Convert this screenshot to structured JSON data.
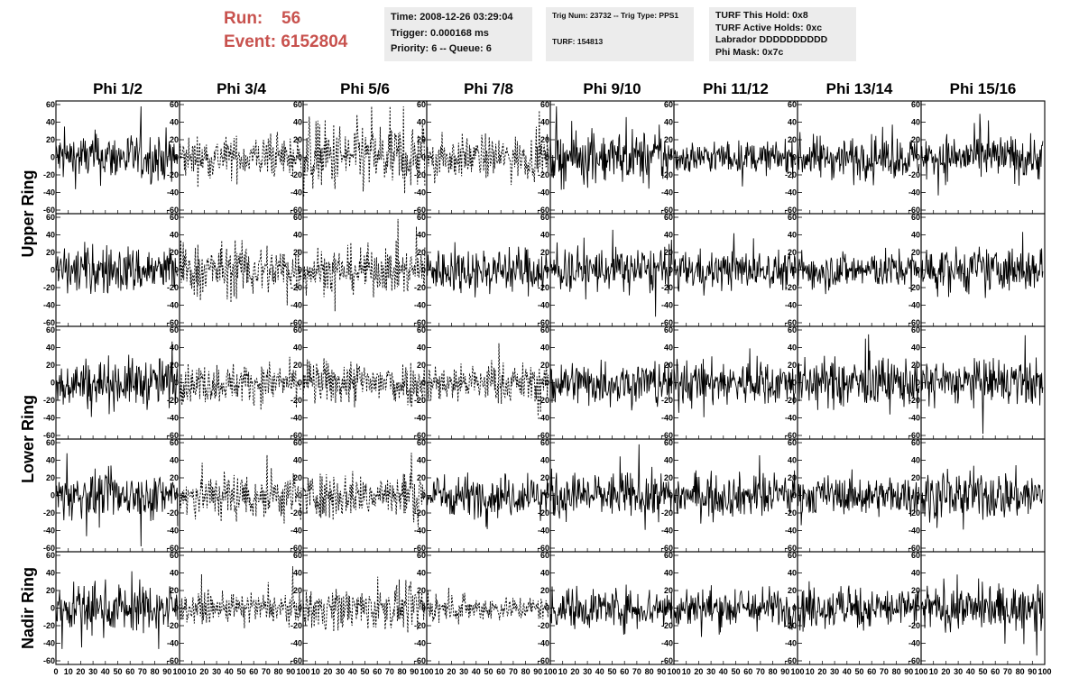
{
  "header": {
    "run_label": "Run:",
    "run_value": "56",
    "event_label": "Event:",
    "event_value": "6152804",
    "accent_color": "#c8524e",
    "time_box": {
      "time": "Time: 2008-12-26 03:29:04",
      "trigger": "Trigger: 0.000168 ms",
      "priority": "Priority: 6 -- Queue: 6"
    },
    "trig_box": {
      "trig": "Trig Num: 23732 -- Trig Type: PPS1",
      "turf": "TURF: 154813"
    },
    "turf_box": {
      "this_hold": "TURF This Hold: 0x8",
      "active_holds": "TURF Active Holds: 0xc",
      "labrador": "Labrador DDDDDDDDDD",
      "phi_mask": "Phi Mask: 0x7c"
    }
  },
  "chart_data": {
    "type": "line",
    "columns": [
      "Phi 1/2",
      "Phi 3/4",
      "Phi 5/6",
      "Phi 7/8",
      "Phi 9/10",
      "Phi 11/12",
      "Phi 13/14",
      "Phi 15/16"
    ],
    "ring_labels": [
      {
        "name": "Upper Ring",
        "rows": [
          0,
          1
        ]
      },
      {
        "name": "Lower Ring",
        "rows": [
          2,
          3
        ]
      },
      {
        "name": "Nadir Ring",
        "rows": [
          4
        ]
      }
    ],
    "rows": 5,
    "ylim": [
      -60,
      60
    ],
    "xlim": [
      0,
      100
    ],
    "y_ticks": [
      -60,
      -40,
      -20,
      0,
      20,
      40,
      60
    ],
    "x_tick_labels": [
      "0",
      "10",
      "20",
      "30",
      "40",
      "50",
      "60",
      "70",
      "80",
      "90",
      "100"
    ],
    "dashed_panels": [
      [
        0,
        1
      ],
      [
        0,
        2
      ],
      [
        0,
        3
      ],
      [
        1,
        1
      ],
      [
        1,
        2
      ],
      [
        2,
        1
      ],
      [
        2,
        2
      ],
      [
        2,
        3
      ],
      [
        3,
        1
      ],
      [
        3,
        2
      ],
      [
        4,
        1
      ],
      [
        4,
        2
      ],
      [
        4,
        3
      ]
    ],
    "amplitudes": [
      [
        14,
        12,
        20,
        12,
        15,
        9,
        12,
        13
      ],
      [
        14,
        15,
        13,
        13,
        13,
        11,
        11,
        13
      ],
      [
        14,
        11,
        13,
        11,
        13,
        13,
        14,
        13
      ],
      [
        13,
        14,
        13,
        12,
        13,
        12,
        11,
        14
      ],
      [
        14,
        8,
        12,
        7,
        12,
        12,
        12,
        13
      ]
    ],
    "line_color": "#000000"
  }
}
